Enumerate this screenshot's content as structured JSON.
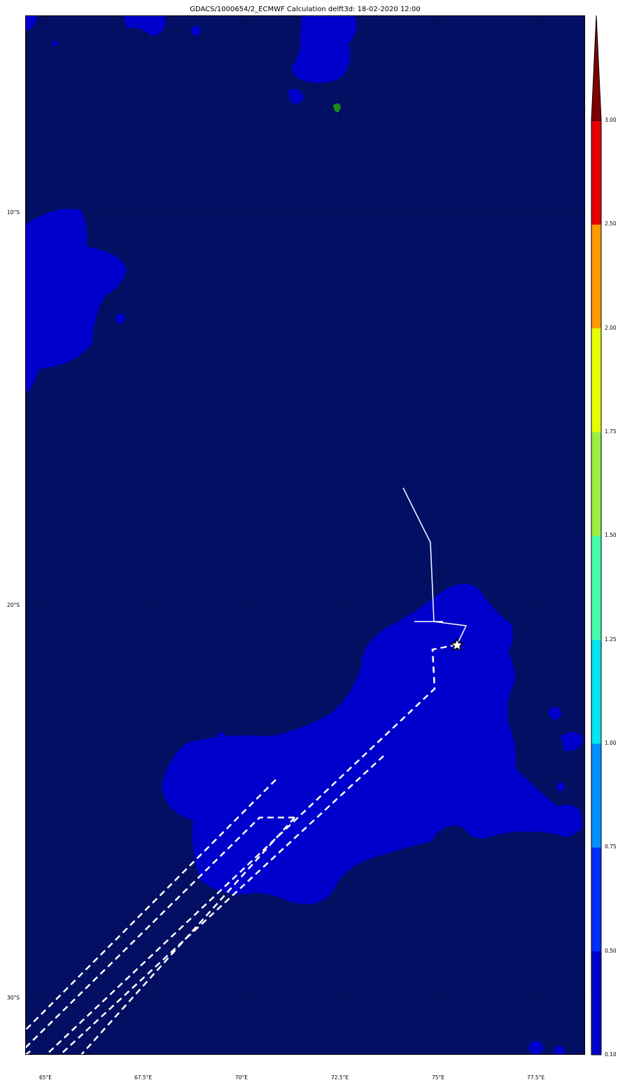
{
  "title": "GDACS/1000654/2_ECMWF Calculation delft3d: 18-02-2020 12:00",
  "map": {
    "ocean_color": "#020f63",
    "low_color": "#0000cd",
    "green_color": "#1a8a1a",
    "track_color": "#ffffff",
    "lon_ticks": [
      "65°E",
      "67.5°E",
      "70°E",
      "72.5°E",
      "75°E",
      "77.5°E"
    ],
    "lat_ticks": [
      "10°S",
      "20°S",
      "30°S"
    ],
    "event_marker": "star-icon"
  },
  "colorbar": {
    "ticks": [
      "0.10",
      "0.50",
      "0.75",
      "1.00",
      "1.25",
      "1.50",
      "1.75",
      "2.00",
      "2.50",
      "3.00"
    ],
    "colors": [
      "#0000cd",
      "#0030ff",
      "#0090ff",
      "#00e5ee",
      "#44ffaa",
      "#99ee44",
      "#e5ff00",
      "#ff9900",
      "#e60000"
    ],
    "extend_color": "#800000"
  }
}
